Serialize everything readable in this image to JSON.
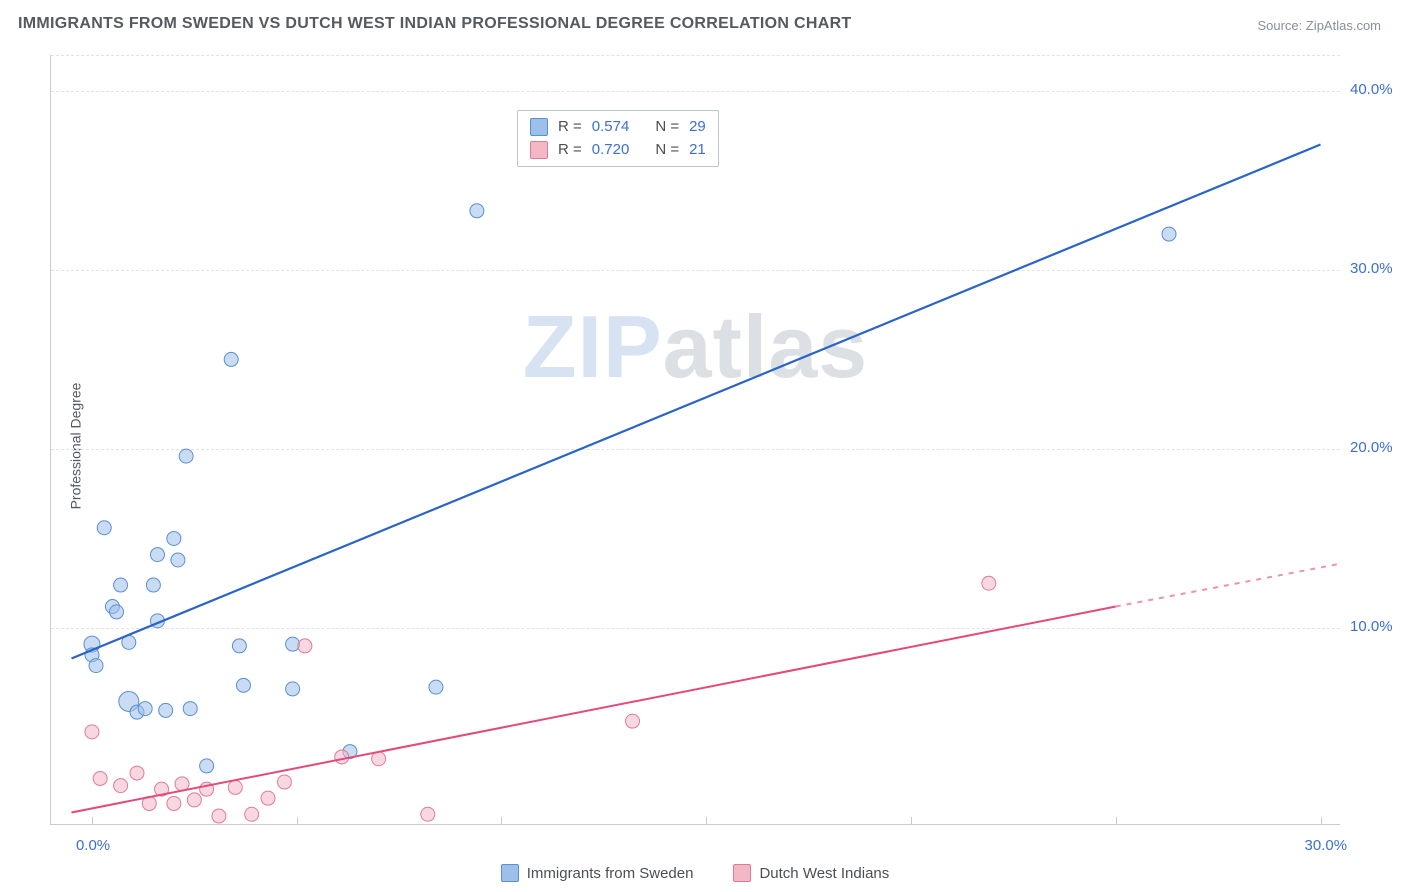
{
  "title": "IMMIGRANTS FROM SWEDEN VS DUTCH WEST INDIAN PROFESSIONAL DEGREE CORRELATION CHART",
  "source_label": "Source: ZipAtlas.com",
  "y_axis_title": "Professional Degree",
  "watermark": {
    "part1": "ZIP",
    "part2": "atlas"
  },
  "chart": {
    "type": "scatter",
    "background_color": "#ffffff",
    "grid_color": "#dfe3e8",
    "axis_color": "#c7ccd3",
    "xlim": [
      -1.0,
      30.5
    ],
    "ylim": [
      -1.0,
      42.0
    ],
    "x_ticks": [
      0,
      5,
      10,
      15,
      20,
      25,
      30
    ],
    "x_tick_labels": {
      "0": "0.0%",
      "30": "30.0%"
    },
    "y_gridlines": [
      10,
      20,
      30,
      40
    ],
    "y_tick_labels": {
      "10": "10.0%",
      "20": "20.0%",
      "30": "30.0%",
      "40": "40.0%"
    },
    "title_fontsize": 16,
    "label_fontsize": 14,
    "tick_fontsize": 15,
    "tick_color": "#3b6fd0"
  },
  "series": [
    {
      "name": "Immigrants from Sweden",
      "fill": "#9dc0ea",
      "stroke": "#5a8fd4",
      "fill_opacity": 0.55,
      "marker_r": 7,
      "line_color": "#2a64c9",
      "line_width": 2.2,
      "R": "0.574",
      "N": "29",
      "trend": {
        "x1": -0.5,
        "y1": 8.3,
        "x2": 30,
        "y2": 37.0
      },
      "points": [
        {
          "x": 0.0,
          "y": 9.1,
          "r": 8
        },
        {
          "x": 0.0,
          "y": 8.5
        },
        {
          "x": 0.1,
          "y": 7.9
        },
        {
          "x": 0.3,
          "y": 15.6
        },
        {
          "x": 0.5,
          "y": 11.2
        },
        {
          "x": 0.6,
          "y": 10.9
        },
        {
          "x": 0.7,
          "y": 12.4
        },
        {
          "x": 0.9,
          "y": 5.9,
          "r": 10
        },
        {
          "x": 0.9,
          "y": 9.2
        },
        {
          "x": 1.1,
          "y": 5.3
        },
        {
          "x": 1.3,
          "y": 5.5
        },
        {
          "x": 1.5,
          "y": 12.4
        },
        {
          "x": 1.6,
          "y": 10.4
        },
        {
          "x": 1.6,
          "y": 14.1
        },
        {
          "x": 1.8,
          "y": 5.4
        },
        {
          "x": 2.0,
          "y": 15.0
        },
        {
          "x": 2.1,
          "y": 13.8
        },
        {
          "x": 2.3,
          "y": 19.6
        },
        {
          "x": 2.4,
          "y": 5.5
        },
        {
          "x": 2.8,
          "y": 2.3
        },
        {
          "x": 3.4,
          "y": 25.0
        },
        {
          "x": 3.6,
          "y": 9.0
        },
        {
          "x": 3.7,
          "y": 6.8
        },
        {
          "x": 4.9,
          "y": 9.1
        },
        {
          "x": 4.9,
          "y": 6.6
        },
        {
          "x": 6.3,
          "y": 3.1
        },
        {
          "x": 8.4,
          "y": 6.7
        },
        {
          "x": 9.4,
          "y": 33.3
        },
        {
          "x": 26.3,
          "y": 32.0
        }
      ]
    },
    {
      "name": "Dutch West Indians",
      "fill": "#f2b8c6",
      "stroke": "#e17a9a",
      "fill_opacity": 0.55,
      "marker_r": 7,
      "line_color": "#e34a7a",
      "line_width": 2.0,
      "R": "0.720",
      "N": "21",
      "trend_solid": {
        "x1": -0.5,
        "y1": -0.3,
        "x2": 25,
        "y2": 11.2
      },
      "trend_dash": {
        "x1": 25,
        "y1": 11.2,
        "x2": 30.5,
        "y2": 13.6
      },
      "points": [
        {
          "x": 0.0,
          "y": 4.2
        },
        {
          "x": 0.2,
          "y": 1.6
        },
        {
          "x": 0.7,
          "y": 1.2
        },
        {
          "x": 1.1,
          "y": 1.9
        },
        {
          "x": 1.4,
          "y": 0.2
        },
        {
          "x": 1.7,
          "y": 1.0
        },
        {
          "x": 2.0,
          "y": 0.2
        },
        {
          "x": 2.2,
          "y": 1.3
        },
        {
          "x": 2.5,
          "y": 0.4
        },
        {
          "x": 2.8,
          "y": 1.0
        },
        {
          "x": 3.1,
          "y": -0.5
        },
        {
          "x": 3.5,
          "y": 1.1
        },
        {
          "x": 3.9,
          "y": -0.4
        },
        {
          "x": 4.3,
          "y": 0.5
        },
        {
          "x": 4.7,
          "y": 1.4
        },
        {
          "x": 5.2,
          "y": 9.0
        },
        {
          "x": 6.1,
          "y": 2.8
        },
        {
          "x": 7.0,
          "y": 2.7
        },
        {
          "x": 8.2,
          "y": -0.4
        },
        {
          "x": 13.2,
          "y": 4.8
        },
        {
          "x": 21.9,
          "y": 12.5
        }
      ]
    }
  ],
  "legend": {
    "r_label": "R =",
    "n_label": "N ="
  }
}
